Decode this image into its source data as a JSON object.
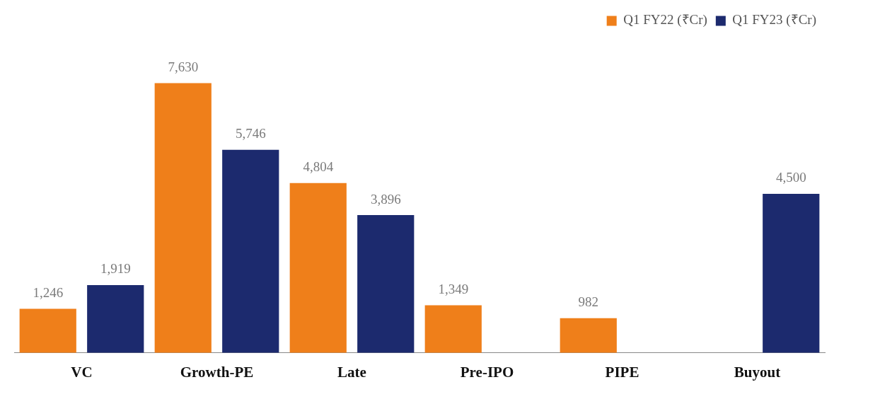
{
  "chart_data": {
    "type": "bar",
    "categories": [
      "VC",
      "Growth-PE",
      "Late",
      "Pre-IPO",
      "PIPE",
      "Buyout"
    ],
    "series": [
      {
        "name": "Q1 FY22 (₹Cr)",
        "color": "#ef7f1a",
        "values": [
          1246,
          7630,
          4804,
          1349,
          982,
          null
        ],
        "value_labels": [
          "1,246",
          "7,630",
          "4,804",
          "1,349",
          "982",
          null
        ]
      },
      {
        "name": "Q1 FY23 (₹Cr)",
        "color": "#1c2a6e",
        "values": [
          1919,
          5746,
          3896,
          null,
          null,
          4500
        ],
        "value_labels": [
          "1,919",
          "5,746",
          "3,896",
          null,
          null,
          "4,500"
        ]
      }
    ],
    "legend": "top right",
    "grid": false
  }
}
